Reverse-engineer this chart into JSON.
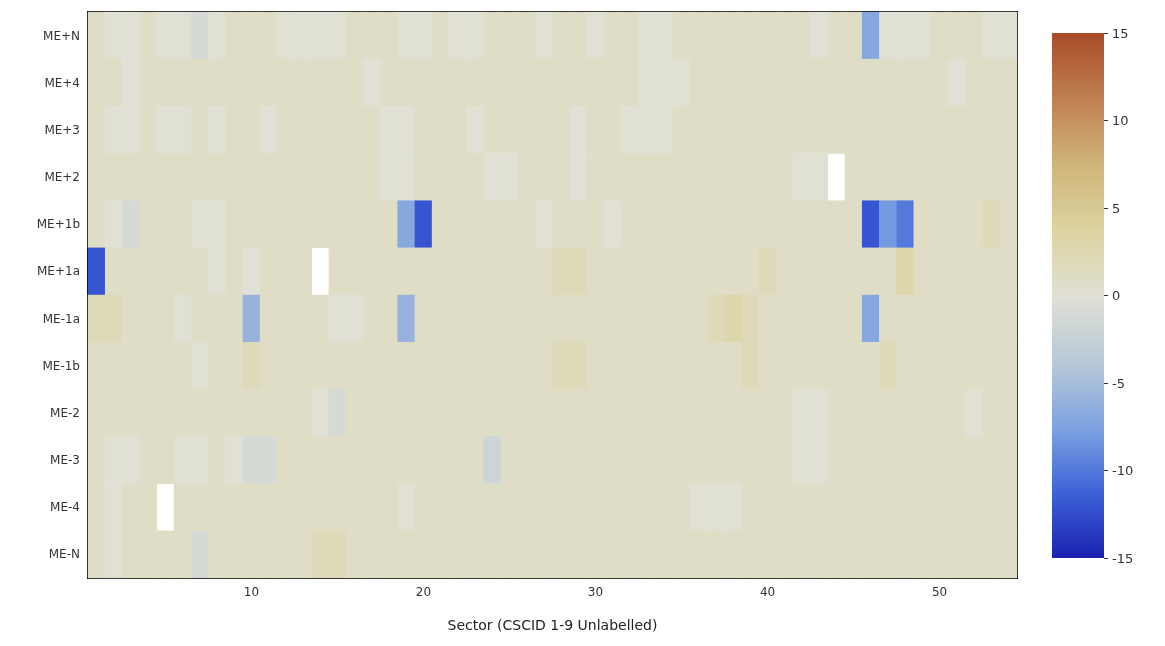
{
  "chart_data": {
    "type": "heatmap",
    "xlabel": "Sector (CSCID 1-9 Unlabelled)",
    "categories": [
      null,
      null,
      null,
      null,
      null,
      null,
      null,
      null,
      null,
      "10",
      null,
      null,
      null,
      null,
      null,
      null,
      null,
      null,
      null,
      "20",
      null,
      null,
      null,
      null,
      null,
      null,
      null,
      null,
      null,
      "30",
      null,
      null,
      null,
      null,
      null,
      null,
      null,
      null,
      null,
      "40",
      null,
      null,
      null,
      null,
      null,
      null,
      null,
      null,
      null,
      "50",
      null,
      null,
      null,
      null
    ],
    "y_categories": [
      "ME+N",
      "ME+4",
      "ME+3",
      "ME+2",
      "ME+1b",
      "ME+1a",
      "ME-1a",
      "ME-1b",
      "ME-2",
      "ME-3",
      "ME-4",
      "ME-N"
    ],
    "cells": [
      [
        1,
        0,
        0,
        1,
        0,
        0,
        -1,
        0,
        1,
        1,
        1,
        0,
        0,
        0,
        0,
        1,
        1,
        1,
        0,
        0,
        1,
        0,
        0,
        1,
        1,
        1,
        0,
        1,
        1,
        0,
        1,
        1,
        0,
        0,
        1,
        1,
        1,
        1,
        1,
        1,
        1,
        1,
        0,
        1,
        1,
        -7,
        0,
        0,
        0,
        1,
        1,
        1,
        0,
        0
      ],
      [
        1,
        1,
        0,
        1,
        1,
        1,
        1,
        1,
        1,
        1,
        1,
        1,
        1,
        1,
        1,
        1,
        0,
        1,
        1,
        1,
        1,
        1,
        1,
        1,
        1,
        1,
        1,
        1,
        1,
        1,
        1,
        1,
        0,
        0,
        0,
        1,
        1,
        1,
        1,
        1,
        1,
        1,
        1,
        1,
        1,
        1,
        1,
        1,
        1,
        1,
        0,
        1,
        1,
        1
      ],
      [
        1,
        0,
        0,
        1,
        0,
        0,
        1,
        0,
        1,
        1,
        0,
        1,
        1,
        1,
        1,
        1,
        1,
        0,
        0,
        1,
        1,
        1,
        0,
        1,
        1,
        1,
        1,
        1,
        0,
        1,
        1,
        0,
        0,
        0,
        1,
        1,
        1,
        1,
        1,
        1,
        1,
        1,
        1,
        1,
        1,
        1,
        1,
        1,
        1,
        1,
        1,
        1,
        1,
        1
      ],
      [
        1,
        1,
        1,
        1,
        1,
        1,
        1,
        1,
        1,
        1,
        1,
        1,
        1,
        1,
        1,
        1,
        1,
        0,
        0,
        1,
        1,
        1,
        1,
        0,
        0,
        1,
        1,
        1,
        0,
        1,
        1,
        1,
        1,
        1,
        1,
        1,
        1,
        1,
        1,
        1,
        1,
        0,
        0,
        null,
        1,
        1,
        1,
        1,
        1,
        1,
        1,
        1,
        1,
        1
      ],
      [
        1,
        0,
        -1,
        1,
        1,
        1,
        0,
        0,
        1,
        1,
        1,
        1,
        1,
        1,
        1,
        1,
        1,
        1,
        -7,
        -12,
        1,
        1,
        1,
        1,
        1,
        1,
        0,
        1,
        1,
        1,
        0,
        1,
        1,
        1,
        1,
        1,
        1,
        1,
        1,
        1,
        1,
        1,
        1,
        1,
        1,
        -12,
        -8,
        -10,
        1,
        1,
        1,
        1,
        2,
        1
      ],
      [
        -12,
        1,
        1,
        1,
        1,
        1,
        1,
        0,
        1,
        0,
        1,
        1,
        1,
        null,
        1,
        1,
        1,
        1,
        1,
        1,
        1,
        1,
        1,
        1,
        1,
        1,
        1,
        2,
        2,
        1,
        1,
        1,
        1,
        1,
        1,
        1,
        1,
        1,
        1,
        2,
        1,
        1,
        1,
        1,
        1,
        1,
        1,
        3,
        1,
        1,
        1,
        1,
        1,
        1
      ],
      [
        2,
        2,
        1,
        1,
        1,
        0,
        1,
        1,
        1,
        -6,
        1,
        1,
        1,
        1,
        0,
        0,
        1,
        1,
        -6,
        1,
        1,
        1,
        1,
        1,
        1,
        1,
        1,
        1,
        1,
        1,
        1,
        1,
        1,
        1,
        1,
        1,
        2,
        3,
        2,
        1,
        1,
        1,
        1,
        1,
        1,
        -7,
        1,
        1,
        1,
        1,
        1,
        1,
        1,
        1
      ],
      [
        1,
        1,
        1,
        1,
        1,
        1,
        0,
        1,
        1,
        2,
        1,
        1,
        1,
        1,
        1,
        1,
        1,
        1,
        1,
        1,
        1,
        1,
        1,
        1,
        1,
        1,
        1,
        2,
        2,
        1,
        1,
        1,
        1,
        1,
        1,
        1,
        1,
        1,
        2,
        1,
        1,
        1,
        1,
        1,
        1,
        1,
        2,
        1,
        1,
        1,
        1,
        1,
        1,
        1
      ],
      [
        1,
        1,
        1,
        1,
        1,
        1,
        1,
        1,
        1,
        1,
        1,
        1,
        1,
        0,
        -1,
        1,
        1,
        1,
        1,
        1,
        1,
        1,
        1,
        1,
        1,
        1,
        1,
        1,
        1,
        1,
        1,
        1,
        1,
        1,
        1,
        1,
        1,
        1,
        1,
        1,
        1,
        0,
        0,
        1,
        1,
        1,
        1,
        1,
        1,
        1,
        1,
        0,
        1,
        1
      ],
      [
        1,
        0,
        0,
        1,
        1,
        0,
        0,
        1,
        0,
        -1,
        -1,
        1,
        1,
        1,
        1,
        1,
        1,
        1,
        1,
        1,
        1,
        1,
        1,
        -2,
        1,
        1,
        1,
        1,
        1,
        1,
        1,
        1,
        1,
        1,
        1,
        1,
        1,
        1,
        1,
        1,
        1,
        0,
        0,
        1,
        1,
        1,
        1,
        1,
        1,
        1,
        1,
        1,
        1,
        1
      ],
      [
        1,
        0,
        1,
        1,
        null,
        1,
        1,
        1,
        1,
        1,
        1,
        1,
        1,
        1,
        1,
        1,
        1,
        1,
        0,
        1,
        1,
        1,
        1,
        1,
        1,
        1,
        1,
        1,
        1,
        1,
        1,
        1,
        1,
        1,
        1,
        0,
        0,
        0,
        1,
        1,
        1,
        1,
        1,
        1,
        1,
        1,
        1,
        1,
        1,
        1,
        1,
        1,
        1,
        1
      ],
      [
        1,
        0,
        1,
        1,
        1,
        1,
        -1,
        1,
        1,
        1,
        1,
        1,
        1,
        2,
        2,
        1,
        1,
        1,
        1,
        1,
        1,
        1,
        1,
        1,
        1,
        1,
        1,
        1,
        1,
        1,
        1,
        1,
        1,
        1,
        1,
        1,
        1,
        1,
        1,
        1,
        1,
        1,
        1,
        1,
        1,
        1,
        1,
        1,
        1,
        1,
        1,
        1,
        1,
        1
      ]
    ],
    "clim": [
      -15,
      15
    ],
    "cticks": [
      -15,
      -10,
      -5,
      0,
      5,
      10,
      15
    ]
  }
}
